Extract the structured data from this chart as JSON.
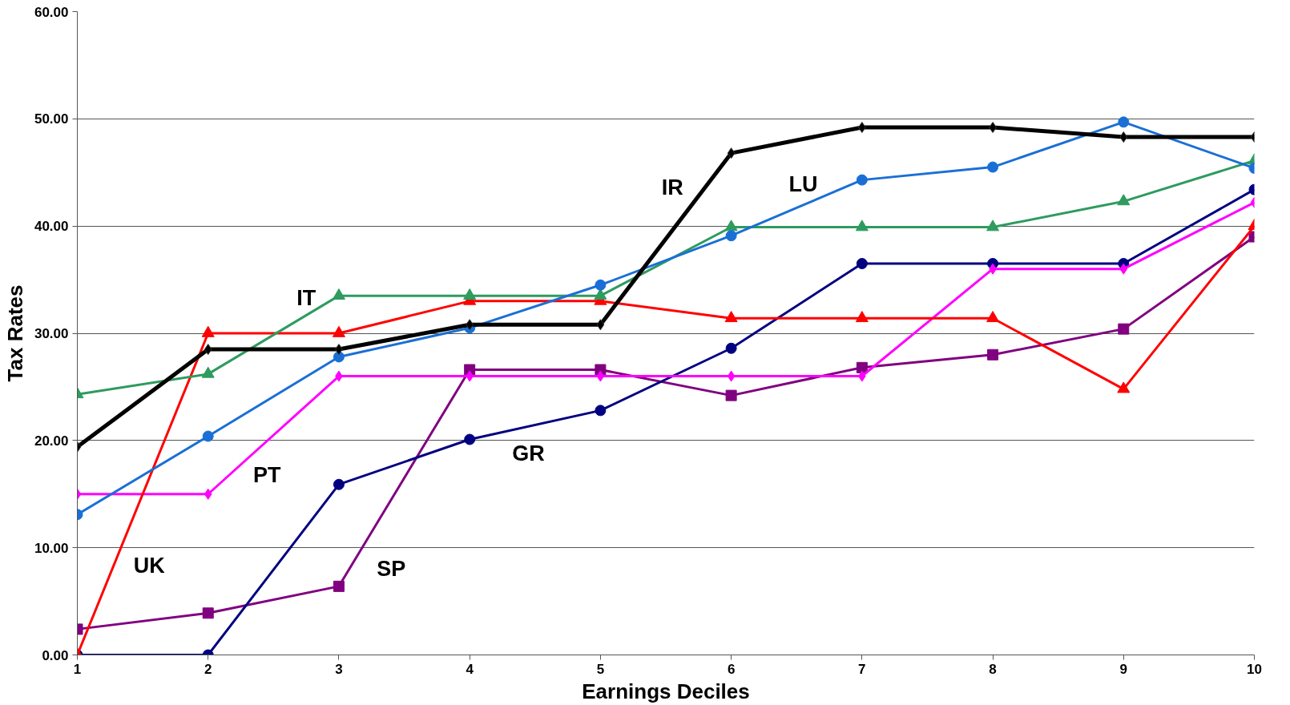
{
  "chart_data": {
    "type": "line",
    "xlabel": "Earnings Deciles",
    "ylabel": "Tax Rates",
    "x": [
      1,
      2,
      3,
      4,
      5,
      6,
      7,
      8,
      9,
      10
    ],
    "xlim": [
      1,
      10
    ],
    "xticks": [
      1,
      2,
      3,
      4,
      5,
      6,
      7,
      8,
      9,
      10
    ],
    "ylim": [
      0,
      60
    ],
    "yticks": [
      {
        "value": 0,
        "label": "0.00"
      },
      {
        "value": 10,
        "label": "10.00"
      },
      {
        "value": 20,
        "label": "20.00"
      },
      {
        "value": 30,
        "label": "30.00"
      },
      {
        "value": 40,
        "label": "40.00"
      },
      {
        "value": 50,
        "label": "50.00"
      },
      {
        "value": 60,
        "label": "60.00"
      }
    ],
    "grid": "y",
    "line_style": "solid",
    "series": [
      {
        "name": "IR",
        "color": "#000000",
        "marker": "diamond",
        "values": [
          19.4,
          28.5,
          28.5,
          30.8,
          30.8,
          46.8,
          49.2,
          49.2,
          48.3,
          48.3
        ]
      },
      {
        "name": "LU",
        "color": "#1a6fd6",
        "marker": "circle",
        "values": [
          13.1,
          20.4,
          27.8,
          30.5,
          34.5,
          39.1,
          44.3,
          45.5,
          49.7,
          45.4
        ]
      },
      {
        "name": "IT",
        "color": "#2e9b5f",
        "marker": "triangle",
        "values": [
          24.3,
          26.2,
          33.5,
          33.5,
          33.5,
          39.9,
          39.9,
          39.9,
          42.3,
          46.1
        ]
      },
      {
        "name": "UK",
        "color": "#ff0000",
        "marker": "triangle",
        "values": [
          0,
          30,
          30,
          33,
          33,
          31.4,
          31.4,
          31.4,
          24.8,
          40
        ]
      },
      {
        "name": "PT",
        "color": "#ff00ff",
        "marker": "diamond",
        "values": [
          15,
          15,
          26,
          26,
          26,
          26,
          26,
          36,
          36,
          42.2
        ]
      },
      {
        "name": "GR",
        "color": "#000080",
        "marker": "circle",
        "values": [
          0,
          0,
          15.9,
          20.1,
          22.8,
          28.6,
          36.5,
          36.5,
          36.5,
          43.4
        ]
      },
      {
        "name": "SP",
        "color": "#800080",
        "marker": "square",
        "values": [
          2.4,
          3.9,
          6.4,
          26.6,
          26.6,
          24.2,
          26.8,
          28,
          30.4,
          39
        ]
      }
    ]
  }
}
